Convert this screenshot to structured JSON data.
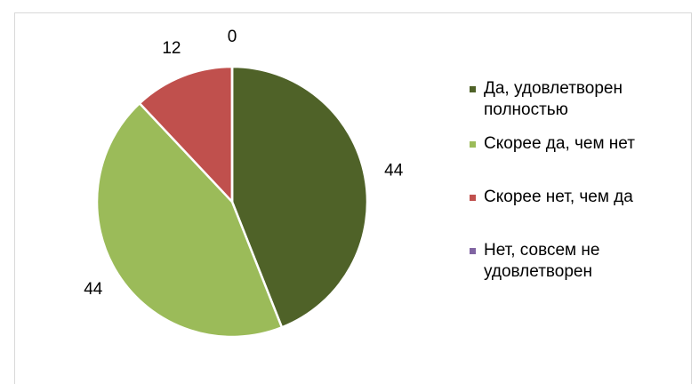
{
  "chart_data": {
    "type": "pie",
    "categories": [
      "Да, удовлетворен полностью",
      "Скорее да, чем нет",
      "Скорее нет, чем да",
      "Нет, совсем не удовлетворен"
    ],
    "values": [
      44,
      44,
      12,
      0
    ],
    "colors": [
      "#4f6228",
      "#9bbb59",
      "#c0504d",
      "#8064a2"
    ],
    "legend": "right"
  }
}
